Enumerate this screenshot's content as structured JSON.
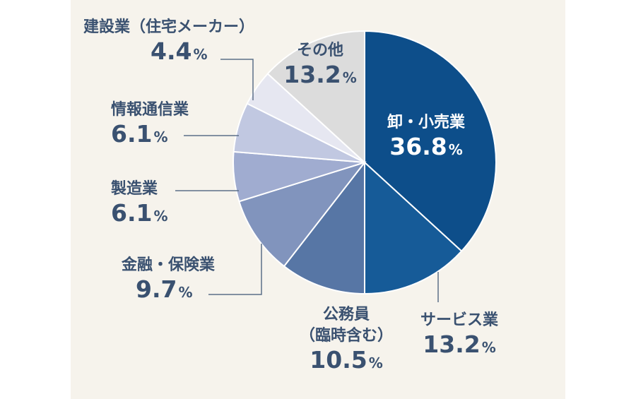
{
  "chart_data": {
    "type": "pie",
    "title": "",
    "unit": "%",
    "slices": [
      {
        "label": "卸・小売業",
        "value": 36.8,
        "display": "36.8",
        "color": "#0d4e8a"
      },
      {
        "label": "サービス業",
        "value": 13.2,
        "display": "13.2",
        "color": "#165b98"
      },
      {
        "label": "公務員（臨時含む）",
        "label_lines": [
          "公務員",
          "（臨時含む）"
        ],
        "value": 10.5,
        "display": "10.5",
        "color": "#5776a5"
      },
      {
        "label": "金融・保険業",
        "value": 9.7,
        "display": "9.7",
        "color": "#8194bd"
      },
      {
        "label": "製造業",
        "value": 6.1,
        "display": "6.1",
        "color": "#a0acd0"
      },
      {
        "label": "情報通信業",
        "value": 6.1,
        "display": "6.1",
        "color": "#c1c8e1"
      },
      {
        "label": "建設業（住宅メーカー）",
        "value": 4.4,
        "display": "4.4",
        "color": "#e6e7f1"
      },
      {
        "label": "その他",
        "value": 13.2,
        "display": "13.2",
        "color": "#dcdcdc"
      }
    ]
  }
}
